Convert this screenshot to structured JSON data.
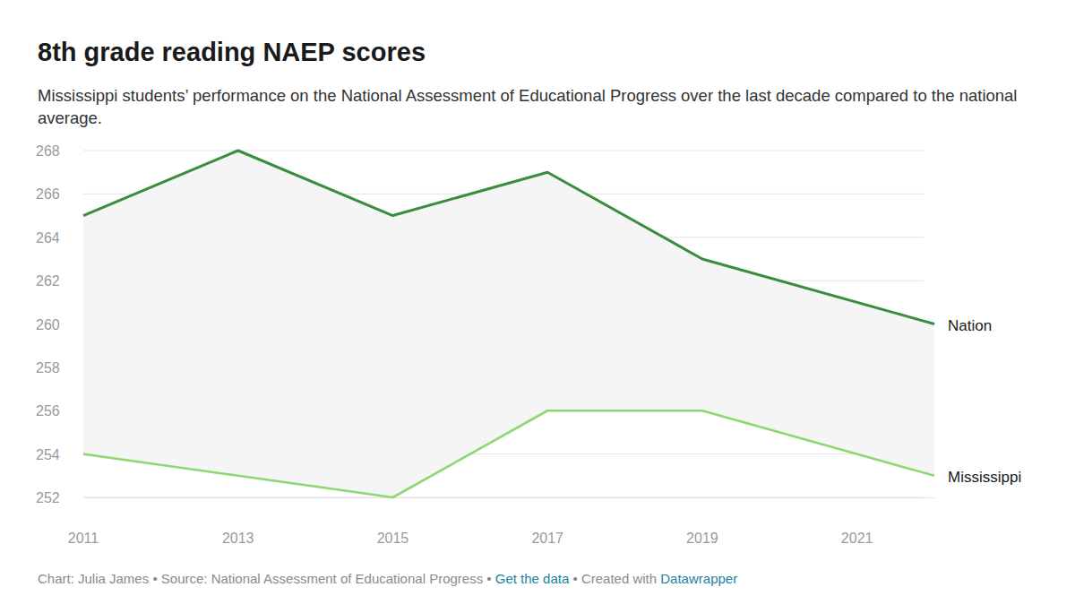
{
  "chart_data": {
    "type": "line",
    "title": "8th grade reading NAEP scores",
    "subtitle": "Mississippi students’ performance on the National Assessment of Educational Progress over the last decade compared to the national average.",
    "footer": [
      "Chart: Julia James • Source: National Assessment of Educational Progress • ",
      "Get the data",
      " • Created with ",
      "Datawrapper"
    ],
    "x": [
      2011,
      2013,
      2015,
      2017,
      2019,
      2022
    ],
    "xlim": [
      2011,
      2022
    ],
    "xticks": [
      2011,
      2013,
      2015,
      2017,
      2019,
      2021
    ],
    "ylim": [
      252,
      268
    ],
    "yticks": [
      252,
      254,
      256,
      258,
      260,
      262,
      264,
      266,
      268
    ],
    "grid": true,
    "series": [
      {
        "name": "Nation",
        "color": "#3a8d3e",
        "values": [
          265,
          268,
          265,
          267,
          263,
          260
        ]
      },
      {
        "name": "Mississippi",
        "color": "#8ed873",
        "values": [
          254,
          253,
          252,
          256,
          256,
          253
        ]
      }
    ]
  }
}
